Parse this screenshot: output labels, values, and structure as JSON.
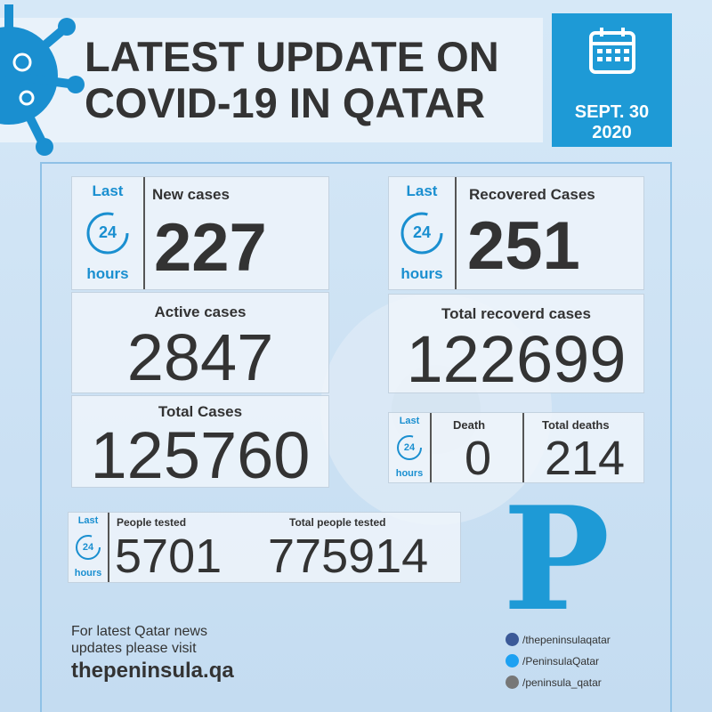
{
  "header": {
    "title_line1": "LATEST UPDATE ON",
    "title_line2": "COVID-19 IN QATAR",
    "date_line1": "SEPT. 30",
    "date_line2": "2020"
  },
  "badge": {
    "last": "Last",
    "number": "24",
    "hours": "hours"
  },
  "cards": {
    "new_cases": {
      "label": "New cases",
      "value": 227
    },
    "recovered": {
      "label": "Recovered Cases",
      "value": 251
    },
    "active": {
      "label": "Active cases",
      "value": 2847
    },
    "total_recovered": {
      "label": "Total recoverd cases",
      "value": 122699
    },
    "total_cases": {
      "label": "Total Cases",
      "value": 125760
    },
    "death": {
      "label": "Death",
      "value": 0
    },
    "total_deaths": {
      "label": "Total deaths",
      "value": 214
    },
    "people_tested": {
      "label": "People tested",
      "value": 5701
    },
    "total_people_tested": {
      "label": "Total people tested",
      "value": 775914
    }
  },
  "logo": "P",
  "footer": {
    "line1": "For latest Qatar news",
    "line2": "updates please visit",
    "website": "thepeninsula.qa"
  },
  "social": [
    "/thepeninsulaqatar",
    "/PeninsulaQatar",
    "/peninsula_qatar"
  ]
}
